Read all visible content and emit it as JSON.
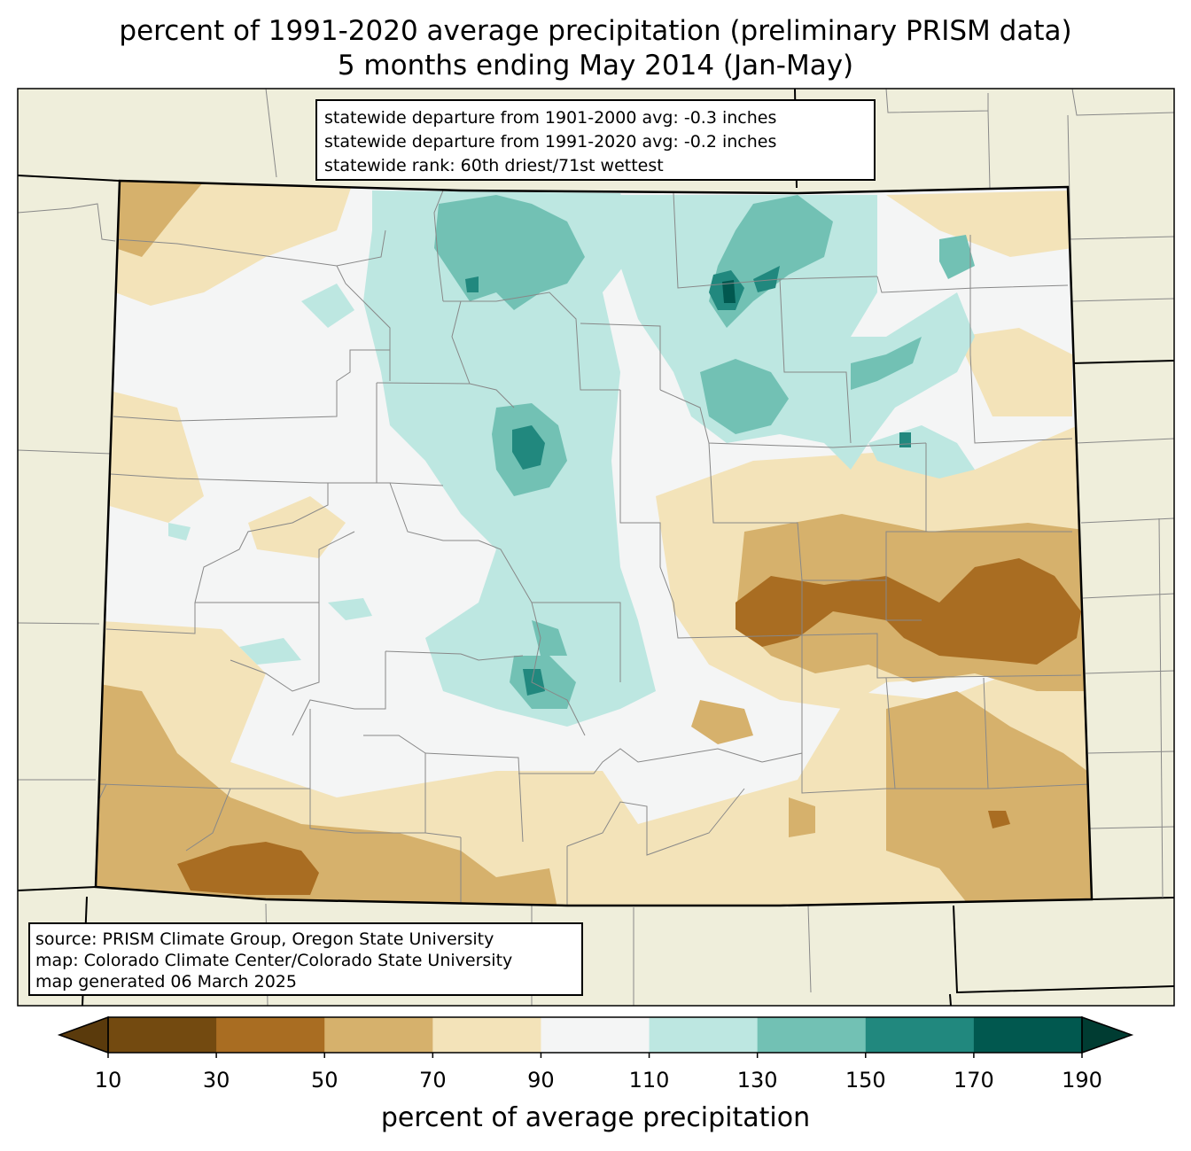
{
  "title": {
    "line1": "percent of 1991-2020 average precipitation (preliminary PRISM data)",
    "line2": "5 months ending May 2014 (Jan-May)"
  },
  "stats": {
    "dep_1901": "statewide departure from 1901-2000 avg: -0.3 inches",
    "dep_1991": "statewide departure from 1991-2020 avg: -0.2 inches",
    "rank": "statewide rank: 60th driest/71st wettest"
  },
  "source": {
    "line1": "source: PRISM Climate Group, Oregon State University",
    "line2": "map: Colorado Climate Center/Colorado State University",
    "line3": "map generated 06 March 2025"
  },
  "colorbar": {
    "label": "percent of average precipitation",
    "ticks": [
      "10",
      "30",
      "50",
      "70",
      "90",
      "110",
      "130",
      "150",
      "170",
      "190"
    ],
    "colors": [
      "#734a10",
      "#a96d22",
      "#d6b16c",
      "#f3e3b9",
      "#f4f5f5",
      "#bde7e1",
      "#72c1b4",
      "#21887e",
      "#01584f"
    ],
    "under_color": "#5a3a0c",
    "over_color": "#003c32"
  },
  "map_colors": {
    "background_land": "#efeedb",
    "ocean": "#efeedb"
  }
}
